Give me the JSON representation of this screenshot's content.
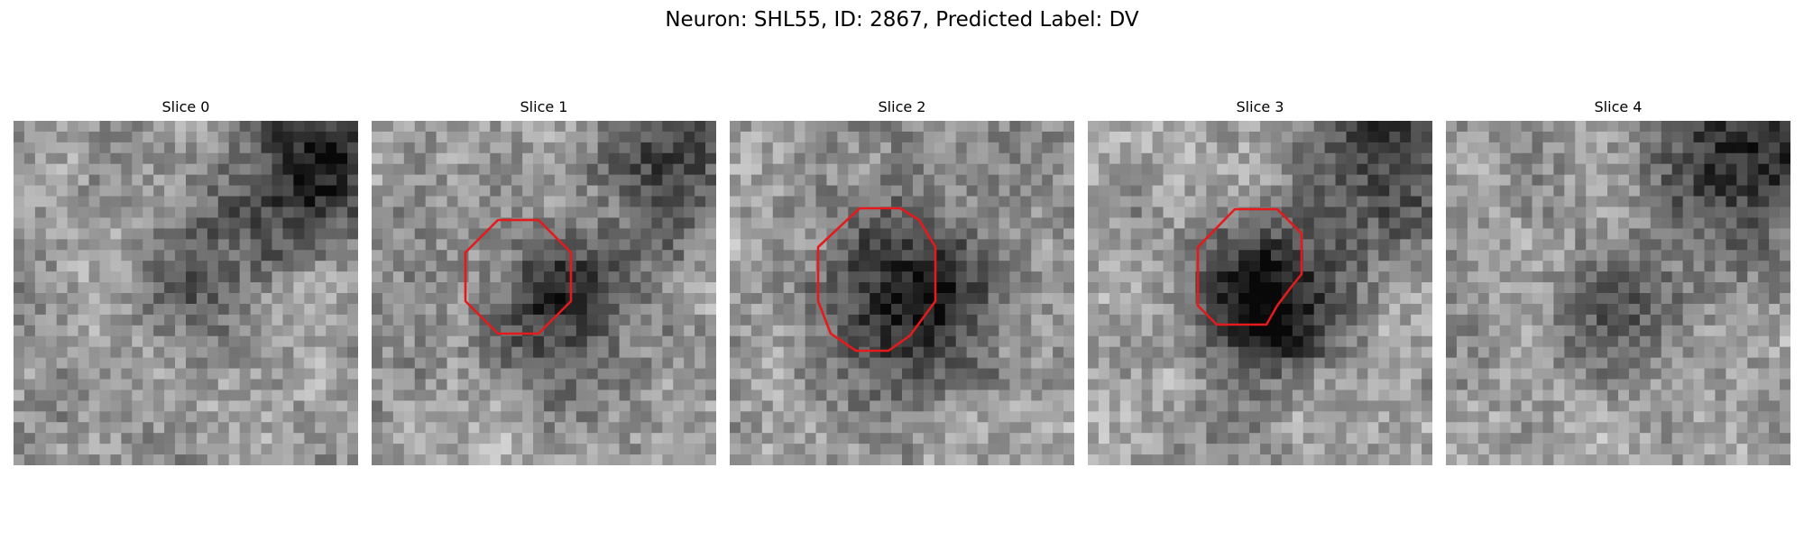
{
  "figure": {
    "title": "Neuron: SHL55, ID: 2867, Predicted Label: DV"
  },
  "panels": [
    {
      "title": "Slice 0",
      "seed": 11,
      "blob_intensity": 0.55,
      "dark_corner_intensity": 0.85,
      "roi": false
    },
    {
      "title": "Slice 1",
      "seed": 23,
      "blob_intensity": 0.75,
      "dark_corner_intensity": 0.55,
      "roi": true
    },
    {
      "title": "Slice 2",
      "seed": 37,
      "blob_intensity": 0.85,
      "dark_corner_intensity": 0.15,
      "roi": true
    },
    {
      "title": "Slice 3",
      "seed": 41,
      "blob_intensity": 1.0,
      "dark_corner_intensity": 0.7,
      "roi": true
    },
    {
      "title": "Slice 4",
      "seed": 53,
      "blob_intensity": 0.35,
      "dark_corner_intensity": 0.8,
      "roi": false
    }
  ],
  "style": {
    "roi_color": "#e41a1c"
  }
}
